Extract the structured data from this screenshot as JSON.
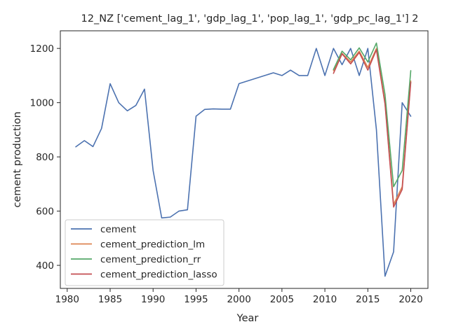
{
  "chart_data": {
    "type": "line",
    "title": "12_NZ ['cement_lag_1', 'gdp_lag_1', 'pop_lag_1', 'gdp_pc_lag_1'] 2",
    "xlabel": "Year",
    "ylabel": "cement production",
    "xlim": [
      1979.2,
      2022.0
    ],
    "ylim": [
      315,
      1265
    ],
    "xticks": [
      1980,
      1985,
      1990,
      1995,
      2000,
      2005,
      2010,
      2015,
      2020
    ],
    "yticks": [
      400,
      600,
      800,
      1000,
      1200
    ],
    "grid": false,
    "legend_position": "lower-left",
    "series": [
      {
        "name": "cement",
        "color": "#4c72b0",
        "x": [
          1981,
          1982,
          1983,
          1984,
          1985,
          1986,
          1987,
          1988,
          1989,
          1990,
          1991,
          1992,
          1993,
          1994,
          1995,
          1996,
          1997,
          1998,
          1999,
          2000,
          2001,
          2002,
          2003,
          2004,
          2005,
          2006,
          2007,
          2008,
          2009,
          2010,
          2011,
          2012,
          2013,
          2014,
          2015,
          2016,
          2017,
          2018,
          2019,
          2020
        ],
        "y": [
          837,
          860,
          838,
          905,
          1070,
          1000,
          970,
          990,
          1050,
          750,
          575,
          578,
          600,
          605,
          950,
          975,
          977,
          976,
          976,
          1070,
          1080,
          1090,
          1100,
          1110,
          1100,
          1120,
          1100,
          1100,
          1200,
          1100,
          1200,
          1140,
          1200,
          1100,
          1200,
          900,
          360,
          450,
          1000,
          950
        ]
      },
      {
        "name": "cement_prediction_lm",
        "color": "#dd8452",
        "x": [
          2011,
          2012,
          2013,
          2014,
          2015,
          2016,
          2017,
          2018,
          2019,
          2020
        ],
        "y": [
          1118,
          1182,
          1150,
          1190,
          1130,
          1200,
          1000,
          625,
          690,
          1080
        ]
      },
      {
        "name": "cement_prediction_rr",
        "color": "#55a868",
        "x": [
          2011,
          2012,
          2013,
          2014,
          2015,
          2016,
          2017,
          2018,
          2019,
          2020
        ],
        "y": [
          1122,
          1190,
          1158,
          1202,
          1150,
          1220,
          1030,
          690,
          750,
          1118
        ]
      },
      {
        "name": "cement_prediction_lasso",
        "color": "#c44e52",
        "x": [
          2011,
          2012,
          2013,
          2014,
          2015,
          2016,
          2017,
          2018,
          2019,
          2020
        ],
        "y": [
          1108,
          1180,
          1143,
          1185,
          1120,
          1195,
          995,
          615,
          680,
          1075
        ]
      }
    ]
  }
}
